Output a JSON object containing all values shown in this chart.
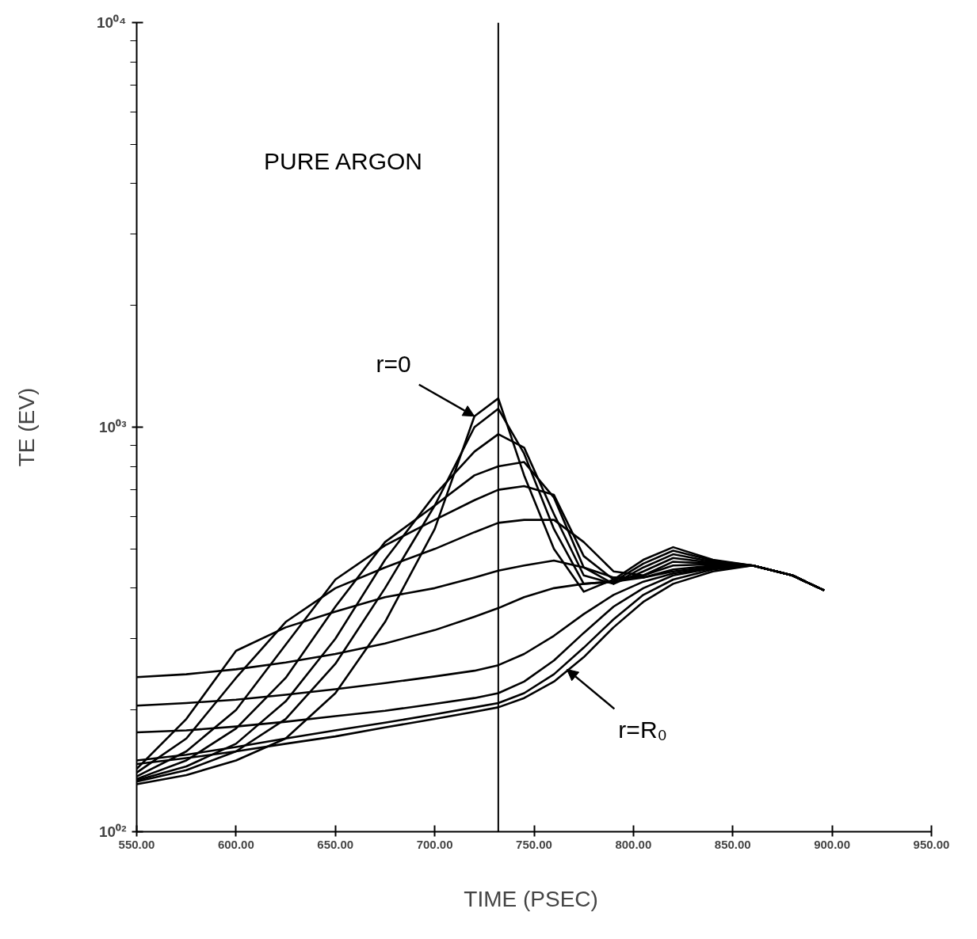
{
  "chart_data": {
    "type": "line",
    "xlabel": "TIME  (PSEC)",
    "ylabel": "TE (EV)",
    "log": "y",
    "grid": false,
    "line_style": "solid",
    "xlim": [
      550,
      950
    ],
    "ylim": [
      100,
      10000
    ],
    "xticks": [
      {
        "value": 550,
        "label": "550.00"
      },
      {
        "value": 600,
        "label": "600.00"
      },
      {
        "value": 650,
        "label": "650.00"
      },
      {
        "value": 700,
        "label": "700.00"
      },
      {
        "value": 750,
        "label": "750.00"
      },
      {
        "value": 800,
        "label": "800.00"
      },
      {
        "value": 850,
        "label": "850.00"
      },
      {
        "value": 900,
        "label": "900.00"
      },
      {
        "value": 950,
        "label": "950.00"
      }
    ],
    "yticks": [
      {
        "value": 100,
        "label": "10⁰²"
      },
      {
        "value": 1000,
        "label": "10⁰³"
      },
      {
        "value": 10000,
        "label": "10⁰⁴"
      }
    ],
    "x": [
      550,
      575,
      600,
      625,
      650,
      675,
      700,
      720,
      732,
      745,
      760,
      775,
      790,
      805,
      820,
      840,
      860,
      880,
      896
    ],
    "ref_lines": [
      {
        "axis": "x",
        "value": 732,
        "color": "#000000"
      }
    ],
    "annotations": [
      "PURE ARGON",
      {
        "text": "r=0",
        "x": 720,
        "y": 1064
      },
      {
        "text": "r=R₀",
        "x": 766.5,
        "y": 252
      }
    ],
    "series": [
      {
        "color": "#000000",
        "values": [
          131,
          138,
          150,
          170,
          220,
          330,
          560,
          1064,
          1178,
          760,
          500,
          392,
          420,
          470,
          505,
          470,
          455,
          430,
          395
        ]
      },
      {
        "color": "#000000",
        "values": [
          133,
          142,
          158,
          190,
          260,
          400,
          640,
          1000,
          1110,
          860,
          560,
          410,
          415,
          460,
          495,
          468,
          455,
          430,
          395
        ]
      },
      {
        "color": "#000000",
        "values": [
          134,
          145,
          165,
          210,
          300,
          470,
          680,
          870,
          961,
          890,
          610,
          430,
          410,
          450,
          485,
          465,
          455,
          430,
          395
        ]
      },
      {
        "color": "#000000",
        "values": [
          135,
          150,
          180,
          240,
          360,
          520,
          640,
          760,
          800,
          820,
          670,
          450,
          410,
          440,
          475,
          462,
          455,
          430,
          395
        ]
      },
      {
        "color": "#000000",
        "values": [
          137,
          158,
          200,
          290,
          420,
          510,
          590,
          660,
          700,
          715,
          680,
          480,
          420,
          430,
          465,
          460,
          455,
          430,
          395
        ]
      },
      {
        "color": "#000000",
        "values": [
          140,
          170,
          240,
          330,
          400,
          450,
          500,
          550,
          580,
          590,
          590,
          520,
          440,
          430,
          455,
          458,
          455,
          430,
          395
        ]
      },
      {
        "color": "#000000",
        "values": [
          143,
          190,
          280,
          320,
          350,
          380,
          400,
          425,
          442,
          455,
          468,
          450,
          425,
          425,
          445,
          455,
          455,
          430,
          395
        ]
      },
      {
        "color": "#000000",
        "values": [
          241,
          245,
          252,
          262,
          275,
          292,
          315,
          340,
          357,
          380,
          400,
          410,
          415,
          425,
          440,
          452,
          455,
          430,
          395
        ]
      },
      {
        "color": "#000000",
        "values": [
          205,
          208,
          212,
          218,
          225,
          233,
          242,
          250,
          258,
          275,
          305,
          345,
          385,
          415,
          435,
          450,
          455,
          430,
          395
        ]
      },
      {
        "color": "#000000",
        "values": [
          176,
          178,
          182,
          187,
          193,
          199,
          207,
          214,
          220,
          235,
          265,
          310,
          360,
          400,
          430,
          448,
          455,
          430,
          395
        ]
      },
      {
        "color": "#000000",
        "values": [
          150,
          155,
          162,
          170,
          178,
          186,
          195,
          203,
          208,
          220,
          245,
          285,
          335,
          385,
          420,
          445,
          455,
          430,
          395
        ]
      },
      {
        "color": "#000000",
        "values": [
          147,
          152,
          158,
          165,
          172,
          181,
          190,
          198,
          203,
          214,
          235,
          270,
          320,
          370,
          410,
          440,
          455,
          430,
          395
        ]
      }
    ]
  }
}
